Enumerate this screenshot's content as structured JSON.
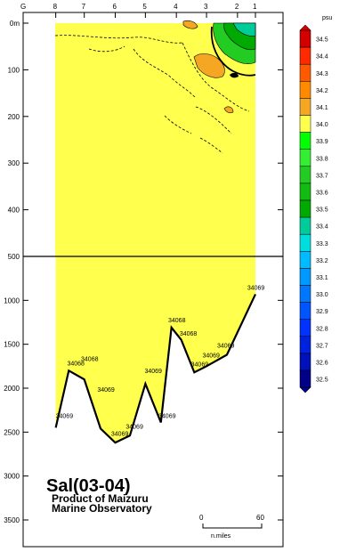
{
  "chart_data": {
    "type": "contour section",
    "title": "Sal(03-04)",
    "credit": [
      "Product of Maizuru",
      "Marine Observatory"
    ],
    "upper_depth_ticks": [
      "0m",
      "100",
      "200",
      "300",
      "400",
      "500"
    ],
    "lower_depth_ticks": [
      "1000",
      "1500",
      "2000",
      "2500",
      "3000",
      "3500"
    ],
    "stations": [
      {
        "label": "G",
        "distance": 0
      },
      {
        "label": "8",
        "distance": 40
      },
      {
        "label": "7",
        "distance": 75
      },
      {
        "label": "6",
        "distance": 113
      },
      {
        "label": "5",
        "distance": 150
      },
      {
        "label": "4",
        "distance": 188
      },
      {
        "label": "3",
        "distance": 225
      },
      {
        "label": "2",
        "distance": 263
      },
      {
        "label": "1",
        "distance": 285
      }
    ],
    "bottom_profile": [
      {
        "distance": 40,
        "depth": 2450
      },
      {
        "distance": 56,
        "depth": 1800
      },
      {
        "distance": 75,
        "depth": 1900
      },
      {
        "distance": 95,
        "depth": 2460
      },
      {
        "distance": 113,
        "depth": 2620
      },
      {
        "distance": 131,
        "depth": 2540
      },
      {
        "distance": 150,
        "depth": 1950
      },
      {
        "distance": 169,
        "depth": 2390
      },
      {
        "distance": 182,
        "depth": 1310
      },
      {
        "distance": 194,
        "depth": 1450
      },
      {
        "distance": 210,
        "depth": 1820
      },
      {
        "distance": 225,
        "depth": 1750
      },
      {
        "distance": 250,
        "depth": 1620
      },
      {
        "distance": 285,
        "depth": 930
      }
    ],
    "value_labels": [
      {
        "text": "34069",
        "distance": 40,
        "depth": 2340
      },
      {
        "text": "34068",
        "distance": 54,
        "depth": 1740
      },
      {
        "text": "34068",
        "distance": 71,
        "depth": 1690
      },
      {
        "text": "34069",
        "distance": 91,
        "depth": 2040
      },
      {
        "text": "34069",
        "distance": 108,
        "depth": 2540
      },
      {
        "text": "34069",
        "distance": 126,
        "depth": 2460
      },
      {
        "text": "34069",
        "distance": 149,
        "depth": 1830
      },
      {
        "text": "34069",
        "distance": 166,
        "depth": 2340
      },
      {
        "text": "34068",
        "distance": 178,
        "depth": 1250
      },
      {
        "text": "34068",
        "distance": 192,
        "depth": 1400
      },
      {
        "text": "34069",
        "distance": 206,
        "depth": 1750
      },
      {
        "text": "34069",
        "distance": 220,
        "depth": 1650
      },
      {
        "text": "34069",
        "distance": 238,
        "depth": 1540
      },
      {
        "text": "34069",
        "distance": 275,
        "depth": 880
      }
    ],
    "colorbar": {
      "unit": "psu",
      "levels": [
        "34.5",
        "34.4",
        "34.3",
        "34.2",
        "34.1",
        "34.0",
        "33.9",
        "33.8",
        "33.7",
        "33.6",
        "33.5",
        "33.4",
        "33.3",
        "33.2",
        "33.1",
        "33.0",
        "32.9",
        "32.8",
        "32.7",
        "32.6",
        "32.5"
      ],
      "colors": [
        "#d40000",
        "#ff2a00",
        "#ff5a00",
        "#ff8a00",
        "#f5a623",
        "#ffff4d",
        "#00ff00",
        "#33ee33",
        "#22cc22",
        "#11bb11",
        "#00aa00",
        "#00cc99",
        "#00dddd",
        "#00bbff",
        "#0099ff",
        "#0077ff",
        "#0055ff",
        "#0033ff",
        "#0022dd",
        "#0011bb",
        "#000088"
      ]
    },
    "scale_bar": {
      "start": "0",
      "end": "60",
      "unit": "n.miles"
    }
  }
}
